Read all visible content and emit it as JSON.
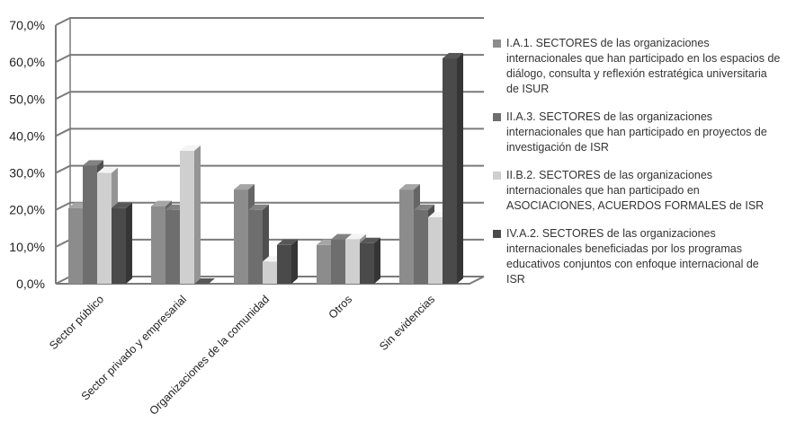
{
  "chart_data": {
    "type": "bar",
    "subtype": "3d-clustered-column",
    "categories": [
      "Sector público",
      "Sector privado y empresarial",
      "Organizaciones de la comunidad",
      "Otros",
      "Sin evidencias"
    ],
    "y_ticks": [
      "0,0%",
      "10,0%",
      "20,0%",
      "30,0%",
      "40,0%",
      "50,0%",
      "60,0%",
      "70,0%"
    ],
    "ylim": [
      0,
      70
    ],
    "grid": true,
    "legend_position": "right",
    "series": [
      {
        "name": "I.A.1. SECTORES de las organizaciones internacionales que han participado en los espacios de diálogo, consulta y reflexión estratégica universitaria de ISUR",
        "color": "#8c8c8c",
        "values": [
          20.5,
          21,
          25.5,
          10.5,
          25.5
        ]
      },
      {
        "name": "II.A.3. SECTORES de las organizaciones internacionales que han participado en proyectos de investigación de ISR",
        "color": "#6e6e6e",
        "values": [
          32,
          20,
          20,
          12,
          20
        ]
      },
      {
        "name": "II.B.2. SECTORES de las organizaciones internacionales que han participado en ASOCIACIONES, ACUERDOS FORMALES de ISR",
        "color": "#cfcfcf",
        "values": [
          30,
          36,
          6,
          12,
          18
        ]
      },
      {
        "name": "IV.A.2. SECTORES de las organizaciones internacionales beneficiadas por los programas educativos conjuntos con enfoque internacional de  ISR",
        "color": "#4a4a4a",
        "values": [
          20.5,
          0,
          10.5,
          11,
          61
        ]
      }
    ]
  }
}
